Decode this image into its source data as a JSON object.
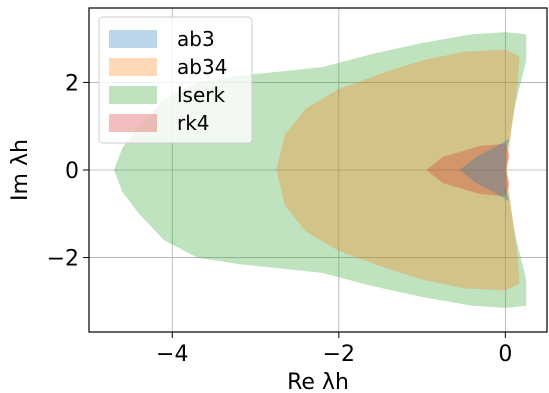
{
  "chart_data": {
    "type": "area",
    "xlabel": "Re λh",
    "ylabel": "Im λh",
    "xlim": [
      -5,
      0.5
    ],
    "ylim": [
      -3.7,
      3.7
    ],
    "x_ticks": [
      -4,
      -2,
      0
    ],
    "x_tick_labels": [
      "−4",
      "−2",
      "0"
    ],
    "y_ticks": [
      -2,
      0,
      2
    ],
    "y_tick_labels": [
      "−2",
      "0",
      "2"
    ],
    "grid": true,
    "legend_position": "top-left",
    "series": [
      {
        "name": "lserk",
        "color": "#2ca02c",
        "alpha": 0.3,
        "boundary": [
          [
            0.25,
            3.1
          ],
          [
            0.0,
            3.15
          ],
          [
            -0.4,
            3.1
          ],
          [
            -1.0,
            2.9
          ],
          [
            -1.6,
            2.65
          ],
          [
            -2.2,
            2.35
          ],
          [
            -2.7,
            2.25
          ],
          [
            -3.2,
            2.15
          ],
          [
            -3.7,
            2.0
          ],
          [
            -4.1,
            1.6
          ],
          [
            -4.4,
            1.0
          ],
          [
            -4.6,
            0.5
          ],
          [
            -4.7,
            0.0
          ],
          [
            -4.6,
            -0.5
          ],
          [
            -4.4,
            -1.0
          ],
          [
            -4.1,
            -1.6
          ],
          [
            -3.7,
            -2.0
          ],
          [
            -3.2,
            -2.15
          ],
          [
            -2.7,
            -2.25
          ],
          [
            -2.2,
            -2.35
          ],
          [
            -1.6,
            -2.65
          ],
          [
            -1.0,
            -2.9
          ],
          [
            -0.4,
            -3.1
          ],
          [
            0.0,
            -3.15
          ],
          [
            0.25,
            -3.1
          ],
          [
            0.25,
            -2.5
          ],
          [
            0.12,
            -1.5
          ],
          [
            0.03,
            -0.5
          ],
          [
            0.02,
            0.0
          ],
          [
            0.03,
            0.5
          ],
          [
            0.12,
            1.5
          ],
          [
            0.25,
            2.5
          ]
        ]
      },
      {
        "name": "ab34",
        "color": "#ff7f0e",
        "alpha": 0.3,
        "boundary": [
          [
            0.17,
            2.6
          ],
          [
            0.0,
            2.75
          ],
          [
            -0.5,
            2.7
          ],
          [
            -1.0,
            2.5
          ],
          [
            -1.5,
            2.2
          ],
          [
            -2.0,
            1.85
          ],
          [
            -2.4,
            1.4
          ],
          [
            -2.65,
            0.8
          ],
          [
            -2.75,
            0.0
          ],
          [
            -2.65,
            -0.8
          ],
          [
            -2.4,
            -1.4
          ],
          [
            -2.0,
            -1.85
          ],
          [
            -1.5,
            -2.2
          ],
          [
            -1.0,
            -2.5
          ],
          [
            -0.5,
            -2.7
          ],
          [
            0.0,
            -2.75
          ],
          [
            0.17,
            -2.6
          ],
          [
            0.15,
            -2.0
          ],
          [
            0.08,
            -1.0
          ],
          [
            0.02,
            0.0
          ],
          [
            0.08,
            1.0
          ],
          [
            0.15,
            2.0
          ]
        ]
      },
      {
        "name": "rk4",
        "color": "#d62728",
        "alpha": 0.3,
        "boundary": [
          [
            0.0,
            0.6
          ],
          [
            -0.3,
            0.55
          ],
          [
            -0.75,
            0.3
          ],
          [
            -0.95,
            0.0
          ],
          [
            -0.75,
            -0.3
          ],
          [
            -0.3,
            -0.55
          ],
          [
            0.0,
            -0.6
          ],
          [
            0.05,
            -0.3
          ],
          [
            0.0,
            0.0
          ],
          [
            0.05,
            0.3
          ]
        ]
      },
      {
        "name": "ab3",
        "color": "#1f77b4",
        "alpha": 0.3,
        "boundary": [
          [
            0.05,
            0.72
          ],
          [
            -0.1,
            0.55
          ],
          [
            -0.35,
            0.3
          ],
          [
            -0.55,
            0.0
          ],
          [
            -0.35,
            -0.3
          ],
          [
            -0.1,
            -0.55
          ],
          [
            0.05,
            -0.72
          ],
          [
            0.0,
            -0.35
          ],
          [
            0.0,
            0.0
          ],
          [
            0.0,
            0.35
          ]
        ]
      }
    ],
    "legend": [
      {
        "label": "ab3",
        "color": "#1f77b4"
      },
      {
        "label": "ab34",
        "color": "#ff7f0e"
      },
      {
        "label": "lserk",
        "color": "#2ca02c"
      },
      {
        "label": "rk4",
        "color": "#d62728"
      }
    ]
  }
}
